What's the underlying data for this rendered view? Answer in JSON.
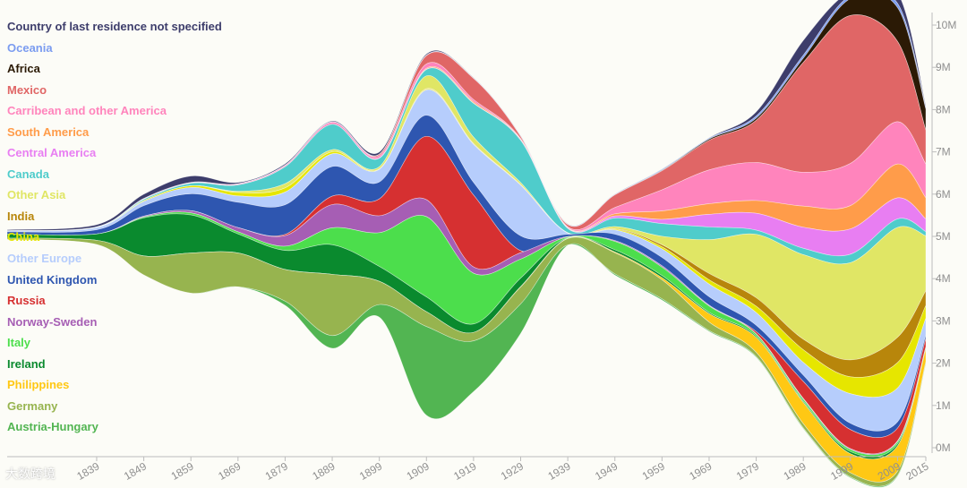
{
  "chart_data": {
    "type": "area",
    "x": [
      1820,
      1839,
      1849,
      1859,
      1869,
      1879,
      1889,
      1899,
      1909,
      1919,
      1929,
      1939,
      1949,
      1959,
      1969,
      1979,
      1989,
      1999,
      2009,
      2015
    ],
    "x_ticks": [
      "1839",
      "1849",
      "1859",
      "1869",
      "1879",
      "1889",
      "1899",
      "1909",
      "1919",
      "1929",
      "1939",
      "1949",
      "1959",
      "1969",
      "1979",
      "1989",
      "1999",
      "2009",
      "2015"
    ],
    "y_ticks": [
      "0M",
      "1M",
      "2M",
      "3M",
      "4M",
      "5M",
      "6M",
      "7M",
      "8M",
      "9M",
      "10M"
    ],
    "ylim": [
      0,
      10
    ],
    "grid": false,
    "legend_position": "top-left",
    "series": [
      {
        "name": "Country of last residence not specified",
        "color": "#3d3d6b",
        "values": [
          0.02,
          0.05,
          0.1,
          0.15,
          0.03,
          0.03,
          0.02,
          0.05,
          0.03,
          0.01,
          0.01,
          0.01,
          0.01,
          0.01,
          0.01,
          0.1,
          0.35,
          0.1,
          0.25,
          0.05
        ]
      },
      {
        "name": "Oceania",
        "color": "#7b9cf0",
        "values": [
          0.01,
          0.01,
          0.01,
          0.01,
          0.01,
          0.01,
          0.01,
          0.01,
          0.01,
          0.01,
          0.01,
          0.01,
          0.01,
          0.02,
          0.02,
          0.05,
          0.07,
          0.07,
          0.1,
          0.05
        ]
      },
      {
        "name": "Africa",
        "color": "#2b1a05",
        "values": [
          0.0,
          0.0,
          0.0,
          0.0,
          0.0,
          0.0,
          0.0,
          0.0,
          0.0,
          0.0,
          0.0,
          0.0,
          0.0,
          0.01,
          0.03,
          0.05,
          0.1,
          0.4,
          0.8,
          0.5
        ]
      },
      {
        "name": "Mexico",
        "color": "#e06666",
        "values": [
          0.0,
          0.0,
          0.0,
          0.0,
          0.0,
          0.0,
          0.0,
          0.03,
          0.2,
          0.5,
          0.05,
          0.05,
          0.3,
          0.45,
          0.7,
          1.0,
          2.6,
          3.5,
          1.9,
          0.8
        ]
      },
      {
        "name": "Carribean and other America",
        "color": "#ff84bc",
        "values": [
          0.0,
          0.0,
          0.01,
          0.01,
          0.02,
          0.03,
          0.05,
          0.05,
          0.1,
          0.05,
          0.02,
          0.02,
          0.15,
          0.5,
          0.8,
          0.9,
          0.8,
          1.0,
          1.0,
          0.8
        ]
      },
      {
        "name": "South America",
        "color": "#ff9c4a",
        "values": [
          0.0,
          0.0,
          0.0,
          0.0,
          0.0,
          0.0,
          0.0,
          0.0,
          0.02,
          0.03,
          0.01,
          0.01,
          0.05,
          0.2,
          0.25,
          0.3,
          0.5,
          0.55,
          0.8,
          0.5
        ]
      },
      {
        "name": "Central America",
        "color": "#e87ef2",
        "values": [
          0.0,
          0.0,
          0.0,
          0.0,
          0.0,
          0.0,
          0.0,
          0.01,
          0.01,
          0.01,
          0.01,
          0.01,
          0.05,
          0.1,
          0.3,
          0.4,
          0.5,
          0.6,
          0.5,
          0.3
        ]
      },
      {
        "name": "Canada",
        "color": "#4fcccb",
        "values": [
          0.0,
          0.01,
          0.03,
          0.06,
          0.15,
          0.4,
          0.6,
          0.2,
          0.15,
          0.8,
          1.0,
          0.1,
          0.2,
          0.3,
          0.3,
          0.1,
          0.15,
          0.2,
          0.2,
          0.1
        ]
      },
      {
        "name": "Other Asia",
        "color": "#e0e665",
        "values": [
          0.0,
          0.0,
          0.0,
          0.0,
          0.03,
          0.1,
          0.05,
          0.05,
          0.3,
          0.15,
          0.05,
          0.01,
          0.05,
          0.2,
          0.8,
          1.5,
          2.0,
          2.3,
          2.6,
          1.3
        ]
      },
      {
        "name": "India",
        "color": "#b8860b",
        "values": [
          0.0,
          0.0,
          0.0,
          0.0,
          0.0,
          0.0,
          0.0,
          0.0,
          0.01,
          0.01,
          0.0,
          0.0,
          0.01,
          0.05,
          0.15,
          0.2,
          0.25,
          0.4,
          0.6,
          0.35
        ]
      },
      {
        "name": "China",
        "color": "#e6e600",
        "values": [
          0.0,
          0.0,
          0.02,
          0.04,
          0.08,
          0.1,
          0.05,
          0.01,
          0.02,
          0.01,
          0.01,
          0.0,
          0.02,
          0.05,
          0.1,
          0.15,
          0.3,
          0.4,
          0.6,
          0.3
        ]
      },
      {
        "name": "Other Europe",
        "color": "#b6cdfc",
        "values": [
          0.02,
          0.05,
          0.1,
          0.15,
          0.15,
          0.3,
          0.3,
          0.3,
          0.6,
          0.9,
          1.2,
          0.03,
          0.1,
          0.2,
          0.3,
          0.3,
          0.3,
          0.7,
          0.8,
          0.4
        ]
      },
      {
        "name": "United Kingdom",
        "color": "#2e56b0",
        "values": [
          0.05,
          0.1,
          0.25,
          0.4,
          0.6,
          0.7,
          0.7,
          0.4,
          0.5,
          0.3,
          0.35,
          0.05,
          0.15,
          0.2,
          0.2,
          0.15,
          0.15,
          0.15,
          0.15,
          0.08
        ]
      },
      {
        "name": "Russia",
        "color": "#d63031",
        "values": [
          0.0,
          0.0,
          0.0,
          0.0,
          0.0,
          0.03,
          0.2,
          0.4,
          1.5,
          1.7,
          0.05,
          0.0,
          0.0,
          0.0,
          0.0,
          0.05,
          0.4,
          0.45,
          0.3,
          0.2
        ]
      },
      {
        "name": "Norway-Sweden",
        "color": "#a65eb4",
        "values": [
          0.0,
          0.0,
          0.02,
          0.05,
          0.1,
          0.25,
          0.55,
          0.4,
          0.4,
          0.15,
          0.15,
          0.01,
          0.02,
          0.03,
          0.02,
          0.01,
          0.02,
          0.02,
          0.02,
          0.01
        ]
      },
      {
        "name": "Italy",
        "color": "#4cde4c",
        "values": [
          0.0,
          0.0,
          0.02,
          0.05,
          0.05,
          0.1,
          0.4,
          0.8,
          1.9,
          1.2,
          0.45,
          0.02,
          0.2,
          0.2,
          0.15,
          0.05,
          0.05,
          0.05,
          0.05,
          0.02
        ]
      },
      {
        "name": "Ireland",
        "color": "#0a8a2e",
        "values": [
          0.1,
          0.15,
          0.9,
          0.9,
          0.45,
          0.45,
          0.7,
          0.35,
          0.35,
          0.2,
          0.2,
          0.01,
          0.05,
          0.05,
          0.03,
          0.03,
          0.03,
          0.05,
          0.05,
          0.02
        ]
      },
      {
        "name": "Philippines",
        "color": "#ffc814",
        "values": [
          0.0,
          0.0,
          0.0,
          0.0,
          0.0,
          0.0,
          0.0,
          0.0,
          0.0,
          0.0,
          0.01,
          0.01,
          0.02,
          0.05,
          0.2,
          0.35,
          0.5,
          0.45,
          0.6,
          0.3
        ]
      },
      {
        "name": "Germany",
        "color": "#97b44f",
        "values": [
          0.03,
          0.1,
          0.45,
          0.95,
          0.8,
          0.75,
          1.45,
          0.55,
          0.35,
          0.2,
          0.4,
          0.15,
          0.5,
          0.45,
          0.2,
          0.1,
          0.1,
          0.1,
          0.1,
          0.05
        ]
      },
      {
        "name": "Austria-Hungary",
        "color": "#52b552",
        "values": [
          0.0,
          0.0,
          0.0,
          0.0,
          0.0,
          0.1,
          0.3,
          0.3,
          2.1,
          1.2,
          0.7,
          0.01,
          0.03,
          0.03,
          0.02,
          0.02,
          0.02,
          0.02,
          0.02,
          0.01
        ]
      }
    ]
  },
  "watermark": "大数跨境"
}
